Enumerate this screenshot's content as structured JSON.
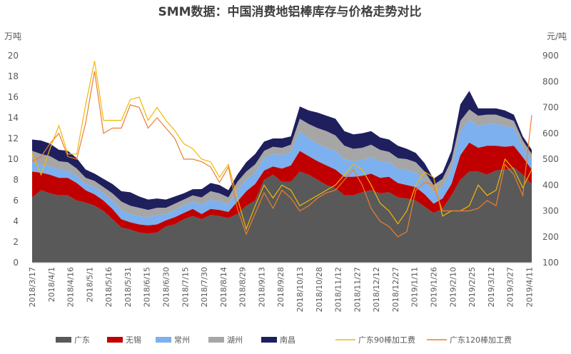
{
  "chart_data": {
    "type": "area",
    "title": "SMM数据：中国消费地铝棒库存与价格走势对比",
    "y_left_unit": "万吨",
    "y_right_unit": "元/吨",
    "y_left_range": [
      0,
      20
    ],
    "y_left_ticks": [
      "0",
      "2",
      "4",
      "6",
      "8",
      "10",
      "12",
      "14",
      "16",
      "18",
      "20"
    ],
    "y_right_range": [
      100,
      900
    ],
    "y_right_ticks": [
      "100",
      "200",
      "300",
      "400",
      "500",
      "600",
      "700",
      "800",
      "900"
    ],
    "x_ticks": [
      "2018/3/17",
      "2018/4/1",
      "2018/4/16",
      "2018/5/1",
      "2018/5/16",
      "2018/5/31",
      "2018/6/15",
      "2018/6/30",
      "2018/7/15",
      "2018/7/30",
      "2018/8/14",
      "2018/8/29",
      "2018/9/13",
      "2018/9/28",
      "2018/10/13",
      "2018/10/28",
      "2018/11/12",
      "2018/11/27",
      "2018/12/12",
      "2018/12/27",
      "2019/1/11",
      "2019/1/26",
      "2019/2/10",
      "2019/2/25",
      "2019/3/12",
      "2019/3/27",
      "2019/4/11"
    ],
    "x_dates": [
      "2018-03-17",
      "2018-03-24",
      "2018-03-31",
      "2018-04-07",
      "2018-04-14",
      "2018-04-21",
      "2018-04-28",
      "2018-05-05",
      "2018-05-12",
      "2018-05-19",
      "2018-05-26",
      "2018-06-02",
      "2018-06-09",
      "2018-06-16",
      "2018-06-23",
      "2018-06-30",
      "2018-07-07",
      "2018-07-14",
      "2018-07-21",
      "2018-07-28",
      "2018-08-04",
      "2018-08-11",
      "2018-08-18",
      "2018-08-25",
      "2018-09-01",
      "2018-09-08",
      "2018-09-15",
      "2018-09-22",
      "2018-09-29",
      "2018-10-06",
      "2018-10-13",
      "2018-10-20",
      "2018-10-27",
      "2018-11-03",
      "2018-11-10",
      "2018-11-17",
      "2018-11-24",
      "2018-12-01",
      "2018-12-08",
      "2018-12-15",
      "2018-12-22",
      "2018-12-29",
      "2019-01-05",
      "2019-01-12",
      "2019-01-19",
      "2019-01-26",
      "2019-02-02",
      "2019-02-09",
      "2019-02-16",
      "2019-02-23",
      "2019-03-02",
      "2019-03-09",
      "2019-03-16",
      "2019-03-23",
      "2019-03-30",
      "2019-04-06",
      "2019-04-13"
    ],
    "stacked_series": [
      {
        "name": "广东",
        "color": "#595959",
        "values": [
          6.3,
          7.0,
          6.7,
          6.5,
          6.5,
          6.0,
          5.8,
          5.5,
          5.0,
          4.2,
          3.4,
          3.2,
          2.9,
          2.8,
          2.9,
          3.5,
          3.7,
          4.2,
          4.5,
          4.2,
          4.6,
          4.5,
          4.3,
          4.7,
          5.5,
          6.0,
          8.0,
          8.5,
          7.8,
          7.8,
          8.8,
          8.5,
          8.0,
          7.5,
          7.2,
          6.5,
          6.5,
          6.8,
          7.0,
          6.7,
          6.8,
          6.3,
          6.2,
          6.0,
          5.4,
          4.8,
          5.2,
          6.5,
          8.0,
          8.8,
          8.8,
          8.5,
          8.9,
          9.0,
          9.2,
          8.5,
          7.6
        ]
      },
      {
        "name": "无锡",
        "color": "#c00000",
        "values": [
          2.5,
          1.7,
          1.8,
          1.7,
          1.7,
          1.7,
          1.2,
          1.1,
          1.0,
          1.0,
          0.8,
          0.7,
          0.8,
          0.8,
          0.8,
          0.6,
          0.7,
          0.6,
          0.7,
          0.5,
          0.6,
          0.6,
          0.6,
          1.2,
          1.4,
          1.6,
          0.9,
          0.8,
          1.3,
          1.6,
          2.0,
          1.8,
          1.8,
          1.9,
          1.8,
          1.8,
          1.8,
          1.6,
          1.6,
          1.5,
          1.5,
          1.4,
          1.3,
          1.3,
          1.2,
          0.9,
          1.0,
          1.1,
          2.4,
          2.8,
          2.3,
          2.8,
          2.4,
          2.2,
          2.1,
          1.7,
          1.4
        ]
      },
      {
        "name": "常州",
        "color": "#7cb0ee",
        "values": [
          0.9,
          0.8,
          0.8,
          0.8,
          0.7,
          0.7,
          0.6,
          0.7,
          0.7,
          0.8,
          0.9,
          0.8,
          0.8,
          0.8,
          0.9,
          0.6,
          0.7,
          0.7,
          0.7,
          0.9,
          0.9,
          0.8,
          0.7,
          1.1,
          1.1,
          1.1,
          1.2,
          1.2,
          1.3,
          1.3,
          1.9,
          1.7,
          1.7,
          1.7,
          1.8,
          1.7,
          1.5,
          1.5,
          1.6,
          1.6,
          1.4,
          1.4,
          1.5,
          1.4,
          1.3,
          1.1,
          1.1,
          1.4,
          2.3,
          2.2,
          2.1,
          2.1,
          2.1,
          2.0,
          1.7,
          0.9,
          0.9
        ]
      },
      {
        "name": "湖州",
        "color": "#a6a6a6",
        "values": [
          1.1,
          1.0,
          1.0,
          0.8,
          0.8,
          0.7,
          0.6,
          0.6,
          0.6,
          0.7,
          0.8,
          0.8,
          0.8,
          0.7,
          0.7,
          0.6,
          0.6,
          0.6,
          0.6,
          0.7,
          0.8,
          0.8,
          0.7,
          0.8,
          0.8,
          0.8,
          0.7,
          0.7,
          0.7,
          0.7,
          1.2,
          1.4,
          1.5,
          1.6,
          1.5,
          1.3,
          1.2,
          1.2,
          1.2,
          1.1,
          1.0,
          1.0,
          1.0,
          1.0,
          0.9,
          0.7,
          0.8,
          0.9,
          1.0,
          1.0,
          1.0,
          0.9,
          0.9,
          0.8,
          0.7,
          0.7,
          0.6
        ]
      },
      {
        "name": "南昌",
        "color": "#1f1f5e",
        "values": [
          1.1,
          1.3,
          1.2,
          1.1,
          1.1,
          1.0,
          0.8,
          0.7,
          0.8,
          0.9,
          1.0,
          1.3,
          1.1,
          1.0,
          0.9,
          0.8,
          0.7,
          0.6,
          0.6,
          0.8,
          0.8,
          0.8,
          0.7,
          0.7,
          0.9,
          1.0,
          0.9,
          0.8,
          0.9,
          0.8,
          1.2,
          1.3,
          1.5,
          1.5,
          1.6,
          1.4,
          1.4,
          1.4,
          1.3,
          1.2,
          1.2,
          1.2,
          1.0,
          0.9,
          0.8,
          0.6,
          0.6,
          0.9,
          1.6,
          1.8,
          0.7,
          0.6,
          0.6,
          0.7,
          0.6,
          0.4,
          0.4
        ]
      }
    ],
    "line_series": [
      {
        "name": "广东90棒加工费",
        "color": "#f2b800",
        "values": [
          520,
          440,
          540,
          630,
          520,
          520,
          710,
          880,
          650,
          650,
          650,
          730,
          740,
          650,
          700,
          650,
          610,
          560,
          540,
          500,
          490,
          430,
          480,
          350,
          230,
          320,
          400,
          350,
          400,
          380,
          320,
          340,
          360,
          380,
          400,
          440,
          480,
          460,
          400,
          330,
          300,
          250,
          300,
          400,
          450,
          430,
          280,
          300,
          300,
          320,
          400,
          360,
          380,
          500,
          460,
          390,
          460
        ]
      },
      {
        "name": "广东120棒加工费",
        "color": "#ed7d31",
        "values": [
          490,
          510,
          560,
          600,
          510,
          500,
          640,
          840,
          600,
          620,
          620,
          710,
          700,
          620,
          660,
          620,
          580,
          500,
          500,
          490,
          470,
          410,
          470,
          310,
          210,
          290,
          370,
          310,
          380,
          350,
          300,
          320,
          350,
          370,
          380,
          420,
          460,
          400,
          310,
          260,
          240,
          200,
          220,
          380,
          410,
          400,
          300,
          300,
          300,
          300,
          310,
          340,
          320,
          480,
          440,
          360,
          670
        ]
      }
    ],
    "legend_position": "bottom",
    "grid": false
  }
}
